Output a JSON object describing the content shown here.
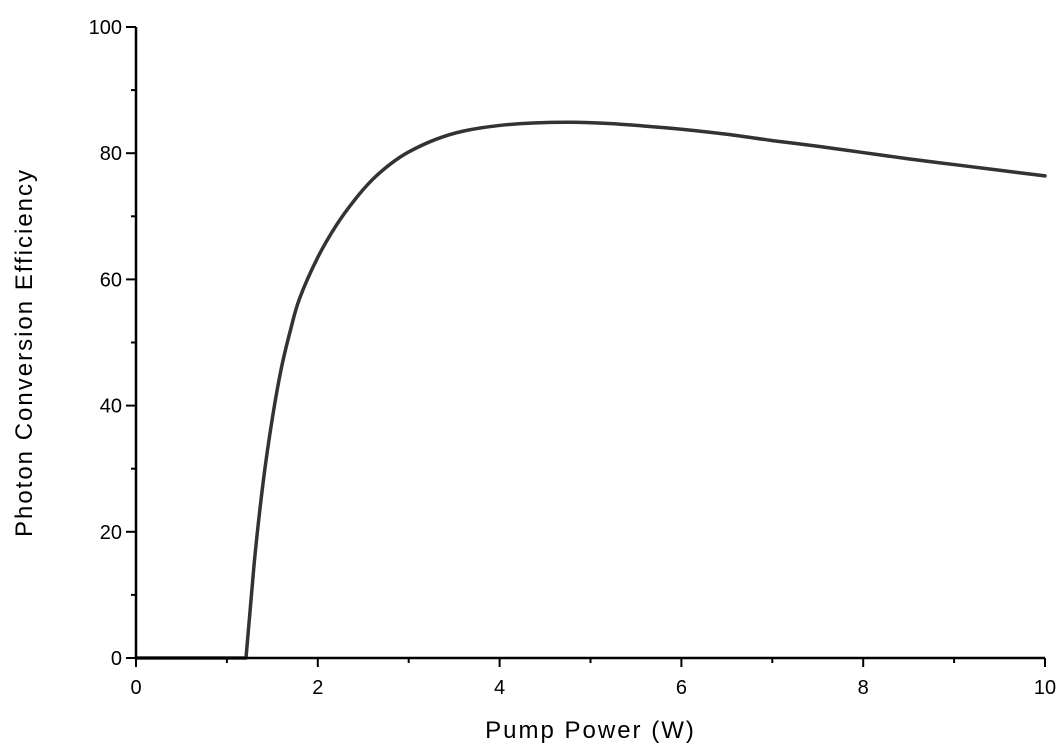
{
  "chart_data": {
    "type": "line",
    "title": "",
    "xlabel": "Pump Power (W)",
    "ylabel": "Photon Conversion Efficiency",
    "xlim": [
      0,
      10
    ],
    "ylim": [
      0,
      100
    ],
    "x_ticks": [
      0,
      2,
      4,
      6,
      8,
      10
    ],
    "y_ticks": [
      0,
      20,
      40,
      60,
      80,
      100
    ],
    "x_tick_labels": [
      "0",
      "2",
      "4",
      "6",
      "8",
      "10"
    ],
    "y_tick_labels": [
      "0",
      "20",
      "40",
      "60",
      "80",
      "100"
    ],
    "grid": false,
    "series": [
      {
        "color": "#333333",
        "x": [
          0,
          1.2,
          1.21,
          1.3,
          1.4,
          1.5,
          1.6,
          1.7,
          1.8,
          2.0,
          2.2,
          2.4,
          2.6,
          2.8,
          3.0,
          3.3,
          3.6,
          4.0,
          4.4,
          4.8,
          5.2,
          5.6,
          6.0,
          6.5,
          7.0,
          7.5,
          8.0,
          8.5,
          9.0,
          9.5,
          10.0
        ],
        "y": [
          0,
          0,
          0,
          15,
          28,
          38,
          46,
          52,
          57,
          63.5,
          68.5,
          72.5,
          75.8,
          78.3,
          80.2,
          82.2,
          83.5,
          84.4,
          84.8,
          84.9,
          84.7,
          84.3,
          83.8,
          83.0,
          82.0,
          81.1,
          80.1,
          79.1,
          78.2,
          77.3,
          76.4
        ]
      }
    ]
  }
}
